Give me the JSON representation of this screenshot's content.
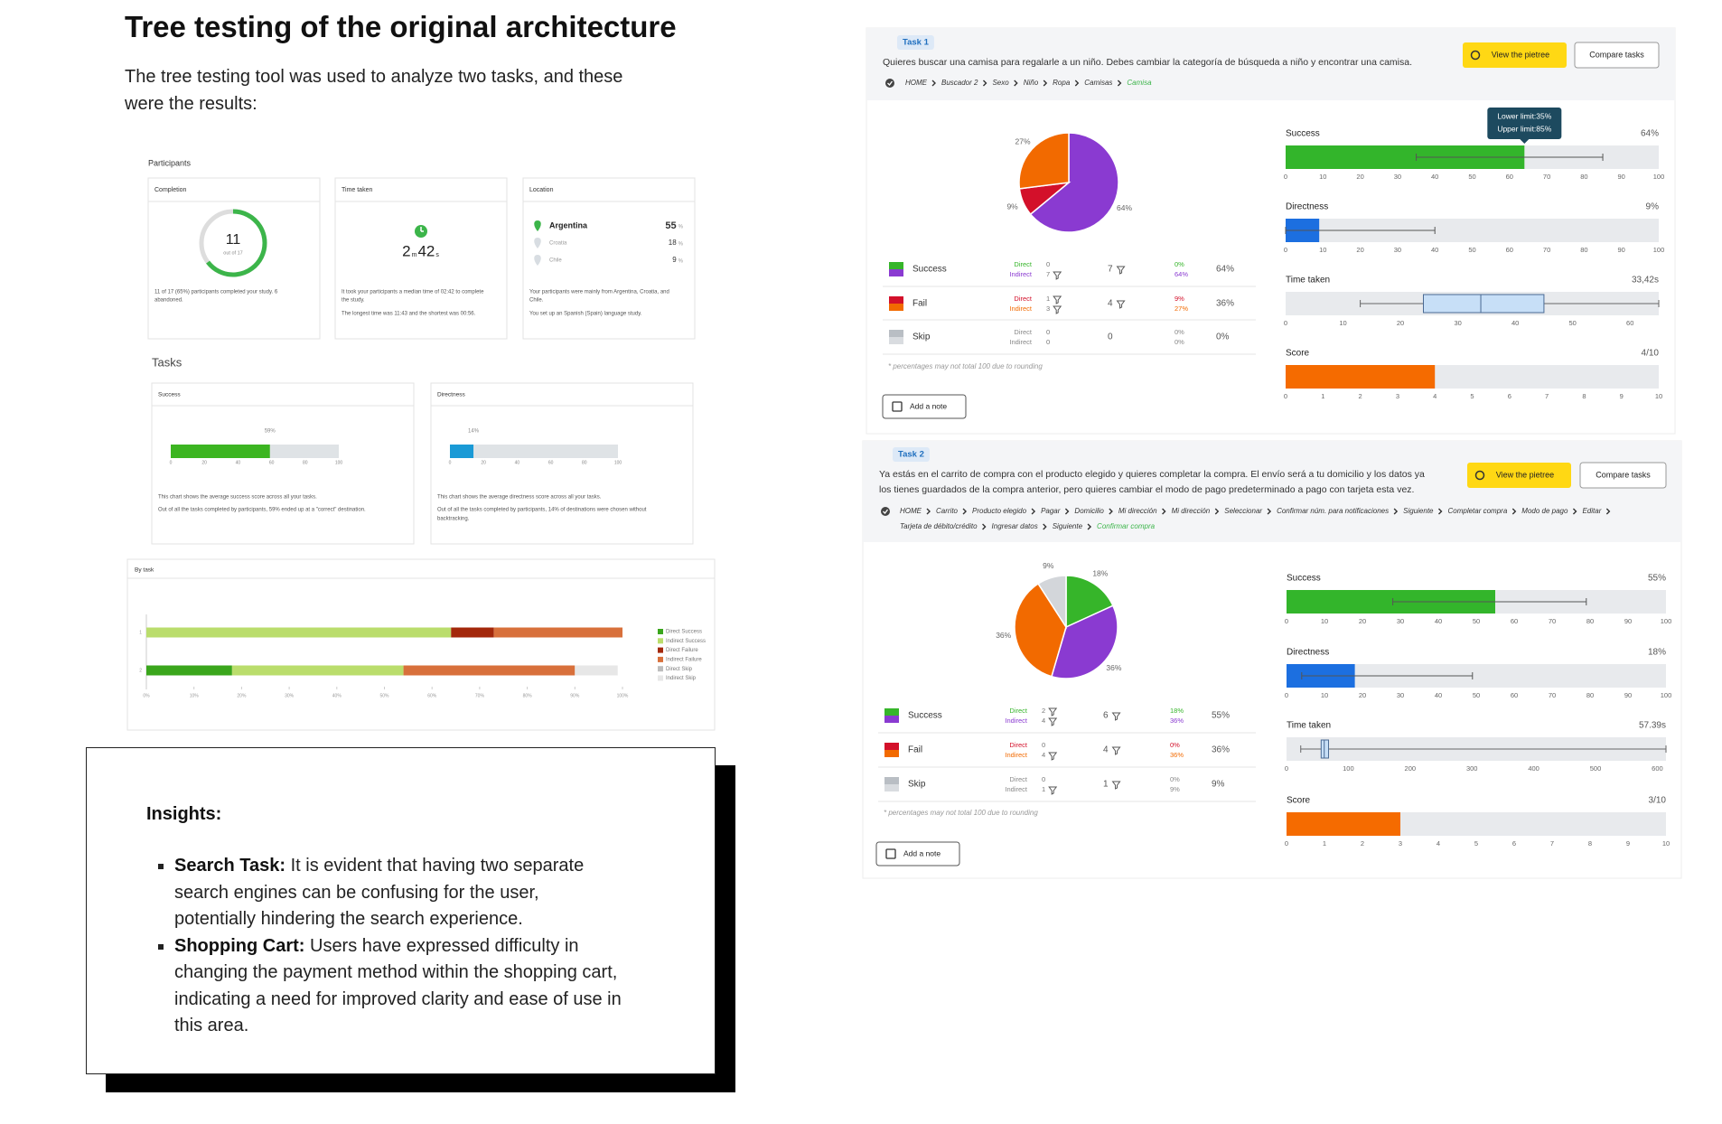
{
  "header": {
    "title": "Tree testing of the original architecture",
    "intro": [
      "The tree testing tool was used to analyze two tasks, and these",
      "were the results:"
    ]
  },
  "summary": {
    "participants_label": "Participants",
    "completion": {
      "label": "Completion",
      "value": 11,
      "total": 17,
      "total_label": "out of 17",
      "notes": [
        "11 of 17 (65%) participants completed your study. 6",
        "abandoned."
      ]
    },
    "time": {
      "label": "Time taken",
      "parts": [
        "2",
        "m",
        "42",
        "s"
      ],
      "notes": [
        "It took your participants a median time of 02:42 to complete",
        "the study.",
        "The longest time was 11:43 and the shortest was 00:56."
      ]
    },
    "location": {
      "label": "Location",
      "rows": [
        {
          "country": "Argentina",
          "value": "55",
          "unit": "%"
        },
        {
          "country": "Croatia",
          "value": "18",
          "unit": "%"
        },
        {
          "country": "Chile",
          "value": "9",
          "unit": "%"
        }
      ],
      "notes": [
        "Your participants were mainly from Argentina, Croatia, and",
        "Chile.",
        "You set up an Spanish (Spain) language study."
      ]
    }
  },
  "tasks_overview": {
    "label": "Tasks",
    "cards": [
      {
        "label": "Success",
        "value": 59,
        "value_label": "59%",
        "color": "#3cb521",
        "xlim": [
          0,
          100
        ],
        "xticks": [
          0,
          20,
          40,
          60,
          80,
          100
        ],
        "notes": [
          "This chart shows the average success score across all your tasks.",
          "Out of all the tasks completed by participants, 59% ended up at a \"correct\" destination."
        ]
      },
      {
        "label": "Directness",
        "value": 14,
        "value_label": "14%",
        "color": "#1a9ad6",
        "xlim": [
          0,
          100
        ],
        "xticks": [
          0,
          20,
          40,
          60,
          80,
          100
        ],
        "notes": [
          "This chart shows the average directness score across all your tasks.",
          "Out of all the tasks completed by participants, 14% of destinations were chosen without",
          "backtracking."
        ]
      }
    ]
  },
  "by_task": {
    "type": "bar",
    "title": "By task",
    "categories": [
      "1",
      "2"
    ],
    "xlim": [
      0,
      100
    ],
    "xticks": [
      {
        "value": 0,
        "label": "0%"
      },
      {
        "value": 10,
        "label": "10%"
      },
      {
        "value": 20,
        "label": "20%"
      },
      {
        "value": 30,
        "label": "30%"
      },
      {
        "value": 40,
        "label": "40%"
      },
      {
        "value": 50,
        "label": "50%"
      },
      {
        "value": 60,
        "label": "60%"
      },
      {
        "value": 70,
        "label": "70%"
      },
      {
        "value": 80,
        "label": "80%"
      },
      {
        "value": 90,
        "label": "90%"
      },
      {
        "value": 100,
        "label": "100%"
      }
    ],
    "series": [
      {
        "name": "Direct Success",
        "color": "#3aa61c",
        "values": [
          0,
          18
        ]
      },
      {
        "name": "Indirect Success",
        "color": "#badd6c",
        "values": [
          64,
          36
        ]
      },
      {
        "name": "Direct Failure",
        "color": "#a3280b",
        "values": [
          9,
          0
        ]
      },
      {
        "name": "Indirect Failure",
        "color": "#d8703b",
        "values": [
          27,
          36
        ]
      },
      {
        "name": "Direct Skip",
        "color": "#bdbdbd",
        "values": [
          0,
          0
        ]
      },
      {
        "name": "Indirect Skip",
        "color": "#e7e7e7",
        "values": [
          0,
          9
        ]
      }
    ]
  },
  "insights": {
    "title": "Insights:",
    "items": [
      {
        "bold": "Search Task:",
        "text": " It is evident that having two separate search engines can be confusing for the user, potentially hindering the search experience."
      },
      {
        "bold": "Shopping Cart:",
        "text": " Users have expressed difficulty in changing the payment method within the shopping cart, indicating a need for improved clarity and ease of use in this area."
      }
    ]
  },
  "tasks": [
    {
      "label": "Task 1",
      "description": [
        "Quieres buscar una camisa para regalarle a un niño. Debes cambiar la categoría de búsqueda a niño y encontrar una camisa."
      ],
      "pietree_button": "View the pietree",
      "compare_button": "Compare tasks",
      "breadcrumb": [
        [
          "HOME",
          "Buscador 2",
          "Sexo",
          "Niño",
          "Ropa",
          "Camisas",
          "Camisa"
        ]
      ],
      "pie": {
        "type": "pie",
        "values": [
          64,
          9,
          27
        ],
        "value_labels": [
          "64%",
          "9%",
          "27%"
        ],
        "colors": [
          "#8a3ad1",
          "#d3102a",
          "#f26a00"
        ]
      },
      "table": {
        "direct_label": "Direct",
        "indirect_label": "Indirect",
        "rows": [
          {
            "name": "Success",
            "colors": [
              "#36b52a",
              "#8a3ad1"
            ],
            "direct": "0",
            "indirect": "7",
            "total": "7",
            "direct_pct": "0%",
            "indirect_pct": "64%",
            "total_pct": "64%"
          },
          {
            "name": "Fail",
            "colors": [
              "#d3102a",
              "#f26a00"
            ],
            "direct": "1",
            "indirect": "3",
            "total": "4",
            "direct_pct": "9%",
            "indirect_pct": "27%",
            "total_pct": "36%"
          },
          {
            "name": "Skip",
            "colors": [
              "#b9bec4",
              "#d9dce0"
            ],
            "direct": "0",
            "indirect": "0",
            "total": "0",
            "direct_pct": "0%",
            "indirect_pct": "0%",
            "total_pct": "0%"
          }
        ]
      },
      "footnote": "* percentages may not total 100 due to rounding",
      "note_button": "Add a note",
      "metrics": [
        {
          "label": "Success",
          "value": 64,
          "value_label": "64%",
          "color": "#33b52b",
          "xlim": [
            0,
            100
          ],
          "xticks": [
            0,
            10,
            20,
            30,
            40,
            50,
            60,
            70,
            80,
            90,
            100
          ],
          "whisker": [
            35,
            85
          ],
          "tooltip": [
            "Lower limit:35%",
            "Upper limit:85%"
          ]
        },
        {
          "label": "Directness",
          "value": 9,
          "value_label": "9%",
          "color": "#1c6fe0",
          "xlim": [
            0,
            100
          ],
          "xticks": [
            0,
            10,
            20,
            30,
            40,
            50,
            60,
            70,
            80,
            90,
            100
          ],
          "whisker": [
            0,
            40
          ]
        },
        {
          "label": "Time taken",
          "value_text": "33,42s",
          "xlim": [
            0,
            65
          ],
          "xticks": [
            0,
            10,
            20,
            30,
            40,
            50,
            60
          ],
          "box": [
            13,
            24,
            34,
            45,
            65
          ]
        },
        {
          "label": "Score",
          "value": 4,
          "value_label": "4/10",
          "color": "#f56b00",
          "xlim": [
            0,
            10
          ],
          "xticks": [
            0,
            1,
            2,
            3,
            4,
            5,
            6,
            7,
            8,
            9,
            10
          ]
        }
      ]
    },
    {
      "label": "Task 2",
      "description": [
        "Ya estás en el carrito de compra con el producto elegido y quieres completar la compra. El envío será a tu domicilio y los datos ya",
        "los tienes guardados de la compra anterior, pero quieres cambiar el modo de pago predeterminado a pago con tarjeta esta vez."
      ],
      "pietree_button": "View the pietree",
      "compare_button": "Compare tasks",
      "breadcrumb": [
        [
          "HOME",
          "Carrito",
          "Producto elegido",
          "Pagar",
          "Domicilio",
          "Mi dirección",
          "Mi dirección",
          "Seleccionar",
          "Confirmar núm. para notificaciones",
          "Siguiente",
          "Completar compra",
          "Modo de pago",
          "Editar"
        ],
        [
          "Tarjeta de débito/crédito",
          "Ingresar datos",
          "Siguiente",
          "Confirmar compra"
        ]
      ],
      "pie": {
        "type": "pie",
        "values": [
          18,
          36,
          36,
          9
        ],
        "value_labels": [
          "18%",
          "36%",
          "36%",
          "9%"
        ],
        "colors": [
          "#36b52a",
          "#8a3ad1",
          "#f26a00",
          "#d3d6da"
        ]
      },
      "table": {
        "direct_label": "Direct",
        "indirect_label": "Indirect",
        "rows": [
          {
            "name": "Success",
            "colors": [
              "#36b52a",
              "#8a3ad1"
            ],
            "direct": "2",
            "indirect": "4",
            "total": "6",
            "direct_pct": "18%",
            "indirect_pct": "36%",
            "total_pct": "55%"
          },
          {
            "name": "Fail",
            "colors": [
              "#d3102a",
              "#f26a00"
            ],
            "direct": "0",
            "indirect": "4",
            "total": "4",
            "direct_pct": "0%",
            "indirect_pct": "36%",
            "total_pct": "36%"
          },
          {
            "name": "Skip",
            "colors": [
              "#b9bec4",
              "#d9dce0"
            ],
            "direct": "0",
            "indirect": "1",
            "total": "1",
            "direct_pct": "0%",
            "indirect_pct": "9%",
            "total_pct": "9%"
          }
        ]
      },
      "footnote": "* percentages may not total 100 due to rounding",
      "note_button": "Add a note",
      "metrics": [
        {
          "label": "Success",
          "value": 55,
          "value_label": "55%",
          "color": "#33b52b",
          "xlim": [
            0,
            100
          ],
          "xticks": [
            0,
            10,
            20,
            30,
            40,
            50,
            60,
            70,
            80,
            90,
            100
          ],
          "whisker": [
            28,
            79
          ]
        },
        {
          "label": "Directness",
          "value": 18,
          "value_label": "18%",
          "color": "#1c6fe0",
          "xlim": [
            0,
            100
          ],
          "xticks": [
            0,
            10,
            20,
            30,
            40,
            50,
            60,
            70,
            80,
            90,
            100
          ],
          "whisker": [
            4,
            49
          ]
        },
        {
          "label": "Time taken",
          "value_text": "57.39s",
          "xlim": [
            0,
            614
          ],
          "xticks": [
            0,
            100,
            200,
            300,
            400,
            500,
            600
          ],
          "box": [
            23,
            56,
            61,
            68,
            614
          ]
        },
        {
          "label": "Score",
          "value": 3,
          "value_label": "3/10",
          "color": "#f56b00",
          "xlim": [
            0,
            10
          ],
          "xticks": [
            0,
            1,
            2,
            3,
            4,
            5,
            6,
            7,
            8,
            9,
            10
          ]
        }
      ]
    }
  ]
}
